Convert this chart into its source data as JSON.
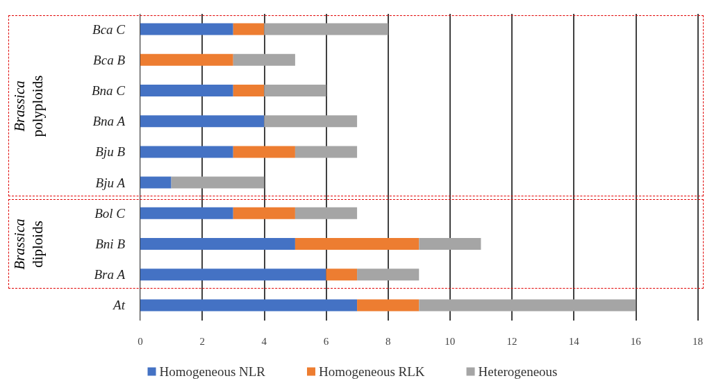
{
  "chart_data": {
    "type": "bar",
    "orientation": "horizontal",
    "stacked": true,
    "categories": [
      "Bca C",
      "Bca B",
      "Bna C",
      "Bna A",
      "Bju B",
      "Bju A",
      "Bol C",
      "Bni B",
      "Bra A",
      "At"
    ],
    "series": [
      {
        "name": "Homogeneous NLR",
        "color": "#4472c4",
        "values": [
          3,
          0,
          3,
          4,
          3,
          1,
          3,
          5,
          6,
          7
        ]
      },
      {
        "name": "Homogeneous RLK",
        "color": "#ed7d31",
        "values": [
          1,
          3,
          1,
          0,
          2,
          0,
          2,
          4,
          1,
          2
        ]
      },
      {
        "name": "Heterogeneous",
        "color": "#a5a5a5",
        "values": [
          4,
          2,
          2,
          3,
          2,
          3,
          2,
          2,
          2,
          7
        ]
      }
    ],
    "xlim": [
      0,
      18
    ],
    "xticks": [
      0,
      2,
      4,
      6,
      8,
      10,
      12,
      14,
      16,
      18
    ],
    "grid": "x",
    "legend": "bottom",
    "annotations": [
      "Brassica polyploids",
      "Brassica diploids"
    ]
  }
}
